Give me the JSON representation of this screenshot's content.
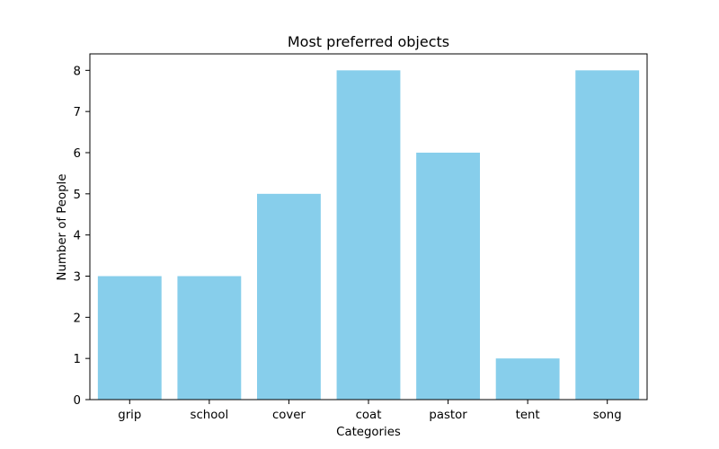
{
  "chart_data": {
    "type": "bar",
    "title": "Most preferred objects",
    "xlabel": "Categories",
    "ylabel": "Number of People",
    "categories": [
      "grip",
      "school",
      "cover",
      "coat",
      "pastor",
      "tent",
      "song"
    ],
    "values": [
      3,
      3,
      5,
      8,
      6,
      1,
      8
    ],
    "ylim": [
      0,
      8.4
    ],
    "yticks": [
      0,
      1,
      2,
      3,
      4,
      5,
      6,
      7,
      8
    ],
    "bar_color": "#87CEEB",
    "grid": false,
    "legend": "none"
  }
}
